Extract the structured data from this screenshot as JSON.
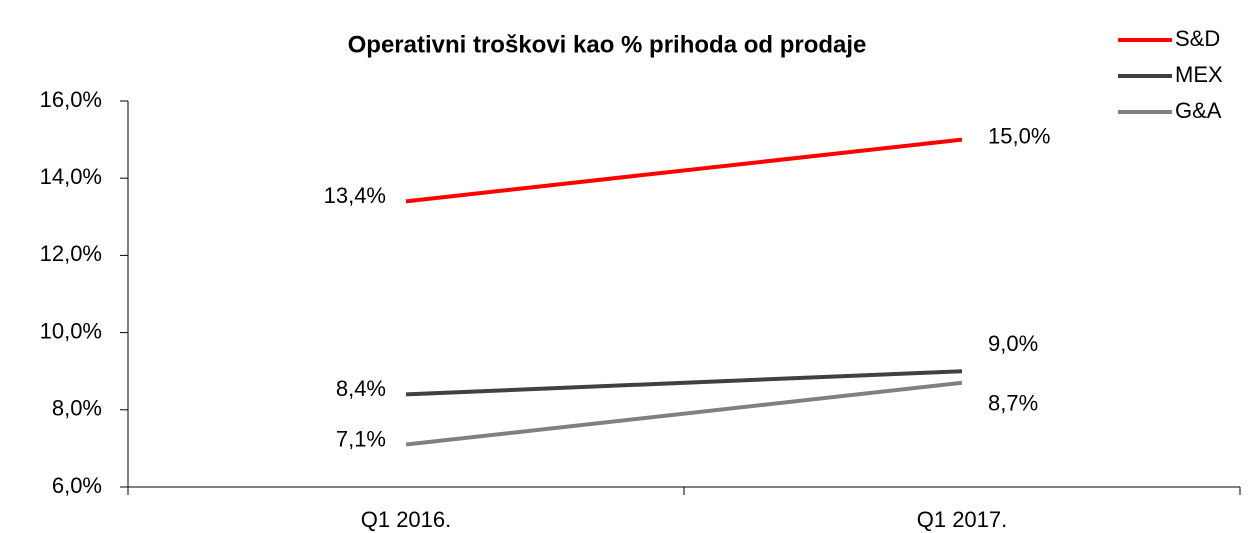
{
  "chart_data": {
    "type": "line",
    "title": "Operativni troškovi kao % prihoda od prodaje",
    "categories": [
      "Q1 2016.",
      "Q1 2017."
    ],
    "series": [
      {
        "name": "S&D",
        "color": "#ff0000",
        "values": [
          13.4,
          15.0
        ],
        "value_labels": [
          "13,4%",
          "15,0%"
        ]
      },
      {
        "name": "MEX",
        "color": "#404040",
        "values": [
          8.4,
          9.0
        ],
        "value_labels": [
          "8,4%",
          "9,0%"
        ]
      },
      {
        "name": "G&A",
        "color": "#808080",
        "values": [
          7.1,
          8.7
        ],
        "value_labels": [
          "7,1%",
          "8,7%"
        ]
      }
    ],
    "ylim": [
      6,
      16
    ],
    "yticks": [
      {
        "value": 6,
        "label": "6,0%"
      },
      {
        "value": 8,
        "label": "8,0%"
      },
      {
        "value": 10,
        "label": "10,0%"
      },
      {
        "value": 12,
        "label": "12,0%"
      },
      {
        "value": 14,
        "label": "14,0%"
      },
      {
        "value": 16,
        "label": "16,0%"
      }
    ],
    "legend": "upper right",
    "grid": false
  }
}
